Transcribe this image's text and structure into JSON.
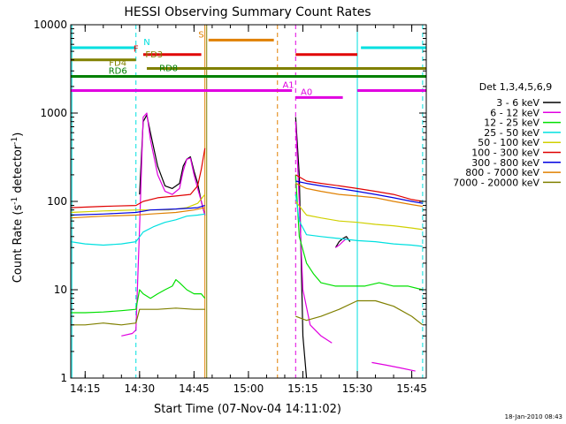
{
  "chart_data": {
    "type": "line",
    "title": "HESSI Observing Summary Count Rates",
    "xlabel": "Start Time (07-Nov-04 14:11:02)",
    "ylabel": "Count Rate (s⁻¹ detector⁻¹)",
    "ylabel_parts": {
      "main": "Count Rate (s",
      "sup1": "-1",
      "mid": " detector",
      "sup2": "-1",
      "end": ")"
    },
    "footer_timestamp": "18-Jan-2010 08:43",
    "yscale": "log",
    "ylim": [
      1,
      10000
    ],
    "xlim": [
      "14:11:02",
      "15:49:00"
    ],
    "x_ticks": [
      "14:15",
      "14:30",
      "14:45",
      "15:00",
      "15:15",
      "15:30",
      "15:45"
    ],
    "y_ticks": [
      "1",
      "10",
      "100",
      "1000",
      "10000"
    ],
    "legend": {
      "title": "Det 1,3,4,5,6,9",
      "placement": "right",
      "entries": [
        {
          "label": "3 - 6 keV",
          "color": "#000000"
        },
        {
          "label": "6 - 12 keV",
          "color": "#e000e0"
        },
        {
          "label": "12 - 25 keV",
          "color": "#00e000"
        },
        {
          "label": "25 - 50 keV",
          "color": "#00e0e0"
        },
        {
          "label": "50 - 100 keV",
          "color": "#d0d000"
        },
        {
          "label": "100 - 300 keV",
          "color": "#e00000"
        },
        {
          "label": "300 - 800 keV",
          "color": "#0000e0"
        },
        {
          "label": "800 - 7000 keV",
          "color": "#e08000"
        },
        {
          "label": "7000 - 20000 keV",
          "color": "#808000"
        }
      ]
    },
    "flag_bars": [
      {
        "label": "N",
        "color": "#00e0e0",
        "y": 5500,
        "segments": [
          [
            "14:11",
            "14:29"
          ],
          [
            "15:31",
            "15:49"
          ]
        ],
        "label_at": "14:32"
      },
      {
        "label": "F",
        "color": "#e00000",
        "y": 4600,
        "segments": [
          [
            "14:31",
            "14:47"
          ],
          [
            "15:13",
            "15:30"
          ]
        ],
        "label_at": "14:29"
      },
      {
        "label": "S",
        "color": "#e08000",
        "y": 6700,
        "segments": [
          [
            "14:49",
            "15:07"
          ]
        ],
        "label_at": "14:47"
      },
      {
        "label": "FD3",
        "color": "#808000",
        "y": 4000,
        "segments": [
          [
            "14:11",
            "14:29"
          ]
        ],
        "label_at": "14:34"
      },
      {
        "label": "FD4",
        "color": "#808000",
        "y": 3200,
        "segments": [
          [
            "14:32",
            "15:49"
          ]
        ],
        "label_at": "14:24"
      },
      {
        "label": "RD6",
        "color": "#008000",
        "y": 2600,
        "segments": [
          [
            "14:11",
            "15:49"
          ]
        ],
        "label_at": "14:24"
      },
      {
        "label": "RD8",
        "color": "#008000",
        "y": 2800,
        "segments": [],
        "label_at": "14:38"
      },
      {
        "label": "A1",
        "color": "#e000e0",
        "y": 1800,
        "segments": [
          [
            "14:11",
            "15:12"
          ],
          [
            "15:30",
            "15:49"
          ]
        ],
        "label_at": "15:11"
      },
      {
        "label": "A0",
        "color": "#e000e0",
        "y": 1500,
        "segments": [
          [
            "15:13",
            "15:26"
          ]
        ],
        "label_at": "15:16"
      }
    ],
    "vertical_markers": [
      {
        "x": "14:11:20",
        "color": "#00e0e0",
        "style": "solid"
      },
      {
        "x": "14:29",
        "color": "#00e0e0",
        "style": "dashed"
      },
      {
        "x": "14:48",
        "color": "#e08000",
        "style": "solid"
      },
      {
        "x": "14:48:30",
        "color": "#808000",
        "style": "solid"
      },
      {
        "x": "15:08",
        "color": "#e08000",
        "style": "dashed"
      },
      {
        "x": "15:13",
        "color": "#e000e0",
        "style": "dashed"
      },
      {
        "x": "15:30",
        "color": "#00e0e0",
        "style": "solid"
      },
      {
        "x": "15:48",
        "color": "#00e0e0",
        "style": "dashed"
      }
    ],
    "series": [
      {
        "name": "3 - 6 keV",
        "color": "#000000",
        "segments": [
          [
            [
              "14:30",
              "120"
            ],
            [
              "14:31",
              "800"
            ],
            [
              "14:32",
              "950"
            ],
            [
              "14:33",
              "600"
            ],
            [
              "14:35",
              "250"
            ],
            [
              "14:37",
              "150"
            ],
            [
              "14:39",
              "140"
            ],
            [
              "14:41",
              "160"
            ],
            [
              "14:42",
              "250"
            ],
            [
              "14:43",
              "300"
            ],
            [
              "14:44",
              "320"
            ],
            [
              "14:45",
              "220"
            ],
            [
              "14:46",
              "160"
            ],
            [
              "14:47",
              "100"
            ],
            [
              "14:48",
              "70"
            ]
          ],
          [
            [
              "15:13",
              "900"
            ],
            [
              "15:14",
              "200"
            ],
            [
              "15:15",
              "3"
            ],
            [
              "15:16",
              "1"
            ]
          ],
          [
            [
              "15:24",
              "30"
            ],
            [
              "15:25",
              "35"
            ],
            [
              "15:26",
              "38"
            ],
            [
              "15:27",
              "40"
            ],
            [
              "15:28",
              "35"
            ]
          ]
        ]
      },
      {
        "name": "6 - 12 keV",
        "color": "#e000e0",
        "segments": [
          [
            [
              "14:25",
              "3"
            ],
            [
              "14:28",
              "3.2"
            ],
            [
              "14:29",
              "3.5"
            ],
            [
              "14:30",
              "50"
            ],
            [
              "14:31",
              "900"
            ],
            [
              "14:32",
              "1000"
            ],
            [
              "14:33",
              "500"
            ],
            [
              "14:35",
              "200"
            ],
            [
              "14:37",
              "130"
            ],
            [
              "14:39",
              "120"
            ],
            [
              "14:41",
              "140"
            ],
            [
              "14:42",
              "220"
            ],
            [
              "14:43",
              "300"
            ],
            [
              "14:44",
              "310"
            ],
            [
              "14:45",
              "200"
            ],
            [
              "14:46",
              "140"
            ],
            [
              "14:47",
              "100"
            ],
            [
              "14:48",
              "70"
            ]
          ],
          [
            [
              "15:13",
              "800"
            ],
            [
              "15:14",
              "100"
            ],
            [
              "15:15",
              "10"
            ],
            [
              "15:17",
              "4"
            ],
            [
              "15:20",
              "3"
            ],
            [
              "15:23",
              "2.5"
            ]
          ],
          [
            [
              "15:24",
              "30"
            ],
            [
              "15:25",
              "32"
            ],
            [
              "15:26",
              "35"
            ],
            [
              "15:27",
              "38"
            ]
          ],
          [
            [
              "15:34",
              "1.5"
            ],
            [
              "15:38",
              "1.4"
            ],
            [
              "15:42",
              "1.3"
            ],
            [
              "15:46",
              "1.2"
            ]
          ]
        ]
      },
      {
        "name": "12 - 25 keV",
        "color": "#00e000",
        "segments": [
          [
            [
              "14:11",
              "5.5"
            ],
            [
              "14:15",
              "5.5"
            ],
            [
              "14:20",
              "5.6"
            ],
            [
              "14:25",
              "5.8"
            ],
            [
              "14:29",
              "6"
            ],
            [
              "14:30",
              "10"
            ],
            [
              "14:31",
              "9"
            ],
            [
              "14:33",
              "8"
            ],
            [
              "14:35",
              "9"
            ],
            [
              "14:37",
              "10"
            ],
            [
              "14:39",
              "11"
            ],
            [
              "14:40",
              "13"
            ],
            [
              "14:41",
              "12"
            ],
            [
              "14:43",
              "10"
            ],
            [
              "14:45",
              "9"
            ],
            [
              "14:47",
              "9"
            ],
            [
              "14:48",
              "8"
            ]
          ],
          [
            [
              "15:13",
              "200"
            ],
            [
              "15:14",
              "40"
            ],
            [
              "15:16",
              "20"
            ],
            [
              "15:18",
              "15"
            ],
            [
              "15:20",
              "12"
            ],
            [
              "15:24",
              "11"
            ],
            [
              "15:28",
              "11"
            ],
            [
              "15:32",
              "11"
            ],
            [
              "15:36",
              "12"
            ],
            [
              "15:40",
              "11"
            ],
            [
              "15:44",
              "11"
            ],
            [
              "15:48",
              "10"
            ]
          ]
        ]
      },
      {
        "name": "25 - 50 keV",
        "color": "#00e0e0",
        "segments": [
          [
            [
              "14:11",
              "35"
            ],
            [
              "14:15",
              "33"
            ],
            [
              "14:20",
              "32"
            ],
            [
              "14:25",
              "33"
            ],
            [
              "14:29",
              "35"
            ],
            [
              "14:31",
              "45"
            ],
            [
              "14:34",
              "52"
            ],
            [
              "14:37",
              "58"
            ],
            [
              "14:40",
              "62"
            ],
            [
              "14:43",
              "68"
            ],
            [
              "14:46",
              "70"
            ],
            [
              "14:48",
              "72"
            ]
          ],
          [
            [
              "15:13",
              "120"
            ],
            [
              "15:14",
              "60"
            ],
            [
              "15:16",
              "42"
            ],
            [
              "15:20",
              "40"
            ],
            [
              "15:25",
              "38"
            ],
            [
              "15:30",
              "36"
            ],
            [
              "15:35",
              "35"
            ],
            [
              "15:40",
              "33"
            ],
            [
              "15:45",
              "32"
            ],
            [
              "15:48",
              "31"
            ]
          ]
        ]
      },
      {
        "name": "50 - 100 keV",
        "color": "#d0d000",
        "segments": [
          [
            [
              "14:11",
              "75"
            ],
            [
              "14:20",
              "78"
            ],
            [
              "14:29",
              "80"
            ],
            [
              "14:33",
              "80"
            ],
            [
              "14:38",
              "80"
            ],
            [
              "14:43",
              "85"
            ],
            [
              "14:46",
              "95"
            ],
            [
              "14:48",
              "120"
            ]
          ],
          [
            [
              "15:13",
              "100"
            ],
            [
              "15:16",
              "70"
            ],
            [
              "15:20",
              "65"
            ],
            [
              "15:25",
              "60"
            ],
            [
              "15:30",
              "58"
            ],
            [
              "15:35",
              "55"
            ],
            [
              "15:40",
              "53"
            ],
            [
              "15:45",
              "50"
            ],
            [
              "15:48",
              "48"
            ]
          ]
        ]
      },
      {
        "name": "100 - 300 keV",
        "color": "#e00000",
        "segments": [
          [
            [
              "14:11",
              "85"
            ],
            [
              "14:20",
              "88"
            ],
            [
              "14:29",
              "90"
            ],
            [
              "14:31",
              "100"
            ],
            [
              "14:35",
              "110"
            ],
            [
              "14:40",
              "115"
            ],
            [
              "14:44",
              "120"
            ],
            [
              "14:46",
              "150"
            ],
            [
              "14:47",
              "230"
            ],
            [
              "14:48",
              "400"
            ]
          ],
          [
            [
              "15:13",
              "200"
            ],
            [
              "15:16",
              "170"
            ],
            [
              "15:20",
              "160"
            ],
            [
              "15:25",
              "150"
            ],
            [
              "15:30",
              "140"
            ],
            [
              "15:35",
              "130"
            ],
            [
              "15:40",
              "120"
            ],
            [
              "15:45",
              "105"
            ],
            [
              "15:48",
              "100"
            ]
          ]
        ]
      },
      {
        "name": "300 - 800 keV",
        "color": "#0000e0",
        "segments": [
          [
            [
              "14:11",
              "70"
            ],
            [
              "14:20",
              "72"
            ],
            [
              "14:29",
              "75"
            ],
            [
              "14:33",
              "80"
            ],
            [
              "14:40",
              "82"
            ],
            [
              "14:46",
              "85"
            ],
            [
              "14:48",
              "90"
            ]
          ],
          [
            [
              "15:13",
              "170"
            ],
            [
              "15:16",
              "160"
            ],
            [
              "15:20",
              "150"
            ],
            [
              "15:25",
              "140"
            ],
            [
              "15:30",
              "130"
            ],
            [
              "15:35",
              "120"
            ],
            [
              "15:40",
              "110"
            ],
            [
              "15:45",
              "100"
            ],
            [
              "15:48",
              "95"
            ]
          ]
        ]
      },
      {
        "name": "800 - 7000 keV",
        "color": "#e08000",
        "segments": [
          [
            [
              "14:11",
              "65"
            ],
            [
              "14:20",
              "68"
            ],
            [
              "14:29",
              "70"
            ],
            [
              "14:33",
              "72"
            ],
            [
              "14:40",
              "75"
            ],
            [
              "14:45",
              "80"
            ],
            [
              "14:48",
              "85"
            ]
          ],
          [
            [
              "15:13",
              "160"
            ],
            [
              "15:16",
              "140"
            ],
            [
              "15:20",
              "130"
            ],
            [
              "15:25",
              "120"
            ],
            [
              "15:30",
              "115"
            ],
            [
              "15:35",
              "110"
            ],
            [
              "15:40",
              "100"
            ],
            [
              "15:45",
              "92"
            ],
            [
              "15:48",
              "88"
            ]
          ]
        ]
      },
      {
        "name": "7000 - 20000 keV",
        "color": "#808000",
        "segments": [
          [
            [
              "14:11",
              "4"
            ],
            [
              "14:15",
              "4"
            ],
            [
              "14:20",
              "4.2"
            ],
            [
              "14:25",
              "4"
            ],
            [
              "14:29",
              "4.2"
            ],
            [
              "14:30",
              "6"
            ],
            [
              "14:35",
              "6"
            ],
            [
              "14:40",
              "6.2"
            ],
            [
              "14:45",
              "6"
            ],
            [
              "14:48",
              "6"
            ]
          ],
          [
            [
              "15:13",
              "5"
            ],
            [
              "15:16",
              "4.5"
            ],
            [
              "15:20",
              "5"
            ],
            [
              "15:25",
              "6"
            ],
            [
              "15:30",
              "7.5"
            ],
            [
              "15:35",
              "7.5"
            ],
            [
              "15:40",
              "6.5"
            ],
            [
              "15:45",
              "5"
            ],
            [
              "15:48",
              "4"
            ]
          ]
        ]
      }
    ]
  }
}
